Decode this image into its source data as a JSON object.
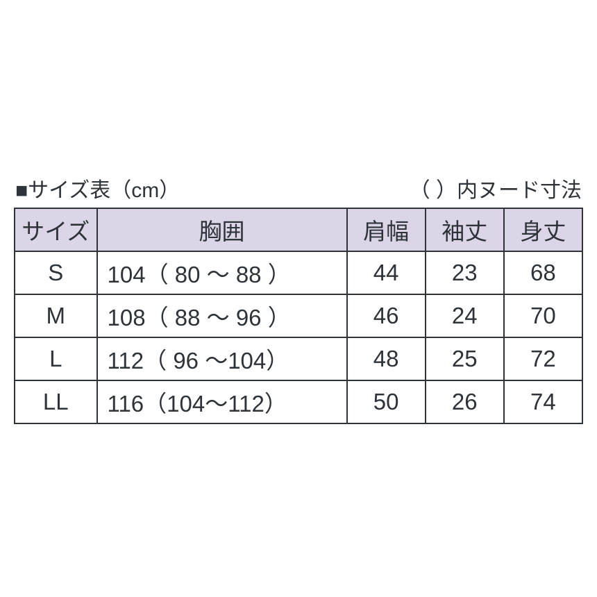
{
  "title": "■サイズ表（cm）",
  "note": "（ ）内ヌード寸法",
  "columns": [
    "サイズ",
    "胸囲",
    "肩幅",
    "袖丈",
    "身丈"
  ],
  "rows": [
    {
      "size": "S",
      "chest": "104（ 80 ～ 88 ）",
      "shoulder": "44",
      "sleeve": "23",
      "length": "68"
    },
    {
      "size": "M",
      "chest": "108（ 88 ～ 96 ）",
      "shoulder": "46",
      "sleeve": "24",
      "length": "70"
    },
    {
      "size": "L",
      "chest": "112（ 96 ～104）",
      "shoulder": "48",
      "sleeve": "25",
      "length": "72"
    },
    {
      "size": "LL",
      "chest": "116（104～112）",
      "shoulder": "50",
      "sleeve": "26",
      "length": "74"
    }
  ],
  "column_widths": {
    "size": 110,
    "chest": 334,
    "shoulder": 105,
    "sleeve": 105,
    "length": 105
  },
  "colors": {
    "border": "#2d3338",
    "header_bg": "#dcd5e8",
    "text": "#2d3338",
    "page_bg": "#ffffff"
  },
  "font": {
    "cell_size_pt": 25,
    "title_size_pt": 22
  }
}
